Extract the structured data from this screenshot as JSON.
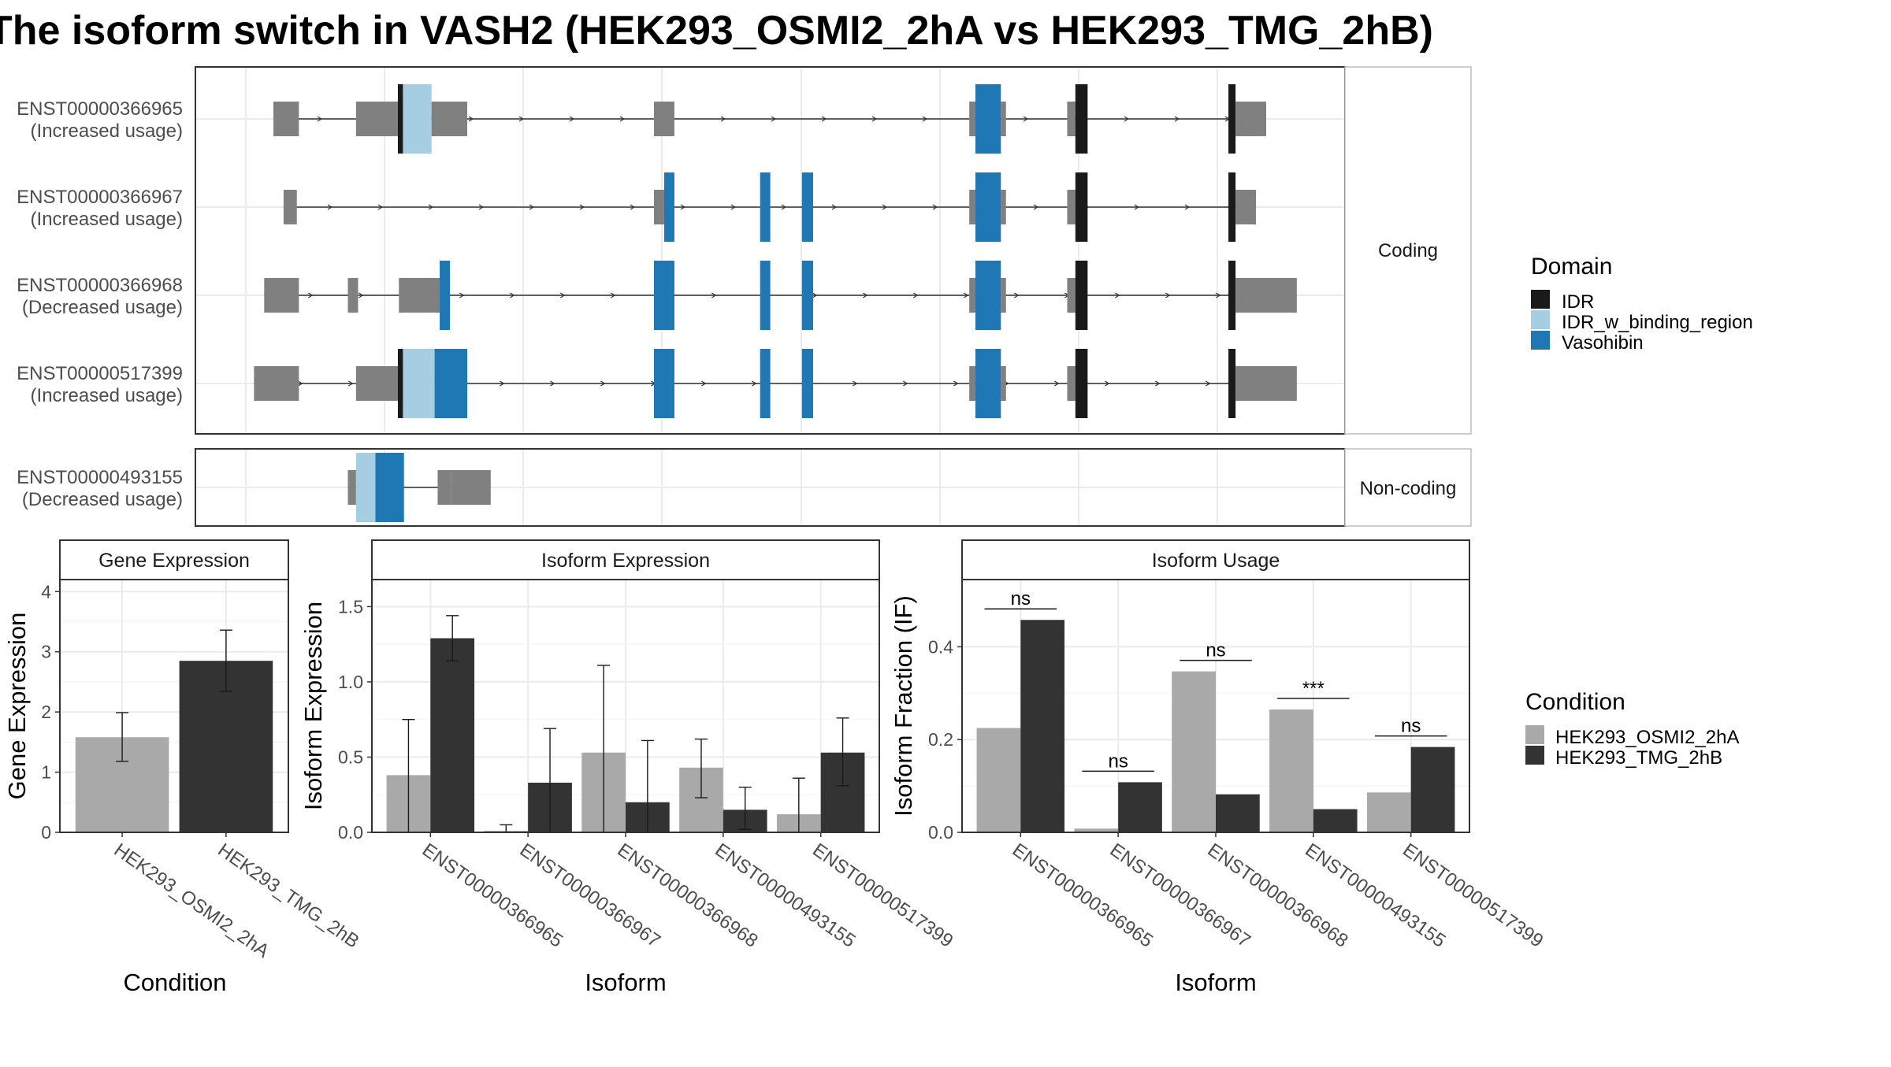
{
  "title": "The isoform switch in VASH2 (HEK293_OSMI2_2hA vs HEK293_TMG_2hB)",
  "colors": {
    "utr": "#808080",
    "IDR": "#1a1a1a",
    "IDR_w_binding_region": "#a6cee3",
    "Vasohibin": "#1f78b4",
    "cond1": "#a9a9a9",
    "cond2": "#333333",
    "grid": "#ebebeb",
    "panel_border": "#333333",
    "strip_fill": "#ffffff"
  },
  "structure": {
    "strips": {
      "coding": "Coding",
      "noncoding": "Non-coding"
    },
    "coding_isoforms": [
      {
        "id": "ENST00000366965",
        "label": "(Increased usage)",
        "segments": [
          {
            "from": 0.027,
            "to": 0.052,
            "kind": "utr"
          },
          {
            "from": 0.108,
            "to": 0.149,
            "kind": "utr"
          },
          {
            "from": 0.149,
            "to": 0.154,
            "kind": "IDR"
          },
          {
            "from": 0.154,
            "to": 0.182,
            "kind": "IDR_w_binding_region"
          },
          {
            "from": 0.182,
            "to": 0.217,
            "kind": "utr"
          },
          {
            "from": 0.4,
            "to": 0.42,
            "kind": "utr"
          },
          {
            "from": 0.709,
            "to": 0.715,
            "kind": "utr"
          },
          {
            "from": 0.715,
            "to": 0.74,
            "kind": "Vasohibin"
          },
          {
            "from": 0.74,
            "to": 0.745,
            "kind": "utr"
          },
          {
            "from": 0.805,
            "to": 0.813,
            "kind": "utr"
          },
          {
            "from": 0.813,
            "to": 0.825,
            "kind": "IDR"
          },
          {
            "from": 0.963,
            "to": 0.97,
            "kind": "IDR"
          },
          {
            "from": 0.97,
            "to": 1.0,
            "kind": "utr"
          }
        ]
      },
      {
        "id": "ENST00000366967",
        "label": "(Increased usage)",
        "segments": [
          {
            "from": 0.037,
            "to": 0.05,
            "kind": "utr"
          },
          {
            "from": 0.4,
            "to": 0.41,
            "kind": "utr"
          },
          {
            "from": 0.41,
            "to": 0.42,
            "kind": "Vasohibin"
          },
          {
            "from": 0.504,
            "to": 0.514,
            "kind": "Vasohibin"
          },
          {
            "from": 0.545,
            "to": 0.556,
            "kind": "Vasohibin"
          },
          {
            "from": 0.709,
            "to": 0.715,
            "kind": "utr"
          },
          {
            "from": 0.715,
            "to": 0.74,
            "kind": "Vasohibin"
          },
          {
            "from": 0.74,
            "to": 0.745,
            "kind": "utr"
          },
          {
            "from": 0.805,
            "to": 0.813,
            "kind": "utr"
          },
          {
            "from": 0.813,
            "to": 0.825,
            "kind": "IDR"
          },
          {
            "from": 0.963,
            "to": 0.97,
            "kind": "IDR"
          },
          {
            "from": 0.97,
            "to": 0.99,
            "kind": "utr"
          }
        ]
      },
      {
        "id": "ENST00000366968",
        "label": "(Decreased usage)",
        "segments": [
          {
            "from": 0.018,
            "to": 0.052,
            "kind": "utr"
          },
          {
            "from": 0.1,
            "to": 0.11,
            "kind": "utr"
          },
          {
            "from": 0.15,
            "to": 0.19,
            "kind": "utr"
          },
          {
            "from": 0.19,
            "to": 0.2,
            "kind": "Vasohibin"
          },
          {
            "from": 0.4,
            "to": 0.42,
            "kind": "Vasohibin"
          },
          {
            "from": 0.504,
            "to": 0.514,
            "kind": "Vasohibin"
          },
          {
            "from": 0.545,
            "to": 0.556,
            "kind": "Vasohibin"
          },
          {
            "from": 0.709,
            "to": 0.715,
            "kind": "utr"
          },
          {
            "from": 0.715,
            "to": 0.74,
            "kind": "Vasohibin"
          },
          {
            "from": 0.74,
            "to": 0.745,
            "kind": "utr"
          },
          {
            "from": 0.805,
            "to": 0.813,
            "kind": "utr"
          },
          {
            "from": 0.813,
            "to": 0.825,
            "kind": "IDR"
          },
          {
            "from": 0.963,
            "to": 0.97,
            "kind": "IDR"
          },
          {
            "from": 0.97,
            "to": 1.03,
            "kind": "utr"
          }
        ]
      },
      {
        "id": "ENST00000517399",
        "label": "(Increased usage)",
        "segments": [
          {
            "from": 0.008,
            "to": 0.052,
            "kind": "utr"
          },
          {
            "from": 0.108,
            "to": 0.149,
            "kind": "utr"
          },
          {
            "from": 0.149,
            "to": 0.154,
            "kind": "IDR"
          },
          {
            "from": 0.154,
            "to": 0.185,
            "kind": "IDR_w_binding_region"
          },
          {
            "from": 0.185,
            "to": 0.217,
            "kind": "Vasohibin"
          },
          {
            "from": 0.4,
            "to": 0.42,
            "kind": "Vasohibin"
          },
          {
            "from": 0.504,
            "to": 0.514,
            "kind": "Vasohibin"
          },
          {
            "from": 0.545,
            "to": 0.556,
            "kind": "Vasohibin"
          },
          {
            "from": 0.709,
            "to": 0.715,
            "kind": "utr"
          },
          {
            "from": 0.715,
            "to": 0.74,
            "kind": "Vasohibin"
          },
          {
            "from": 0.74,
            "to": 0.745,
            "kind": "utr"
          },
          {
            "from": 0.805,
            "to": 0.813,
            "kind": "utr"
          },
          {
            "from": 0.813,
            "to": 0.825,
            "kind": "IDR"
          },
          {
            "from": 0.963,
            "to": 0.97,
            "kind": "IDR"
          },
          {
            "from": 0.97,
            "to": 1.03,
            "kind": "utr"
          }
        ]
      }
    ],
    "noncoding_isoforms": [
      {
        "id": "ENST00000493155",
        "label": "(Decreased usage)",
        "segments": [
          {
            "from": 0.1,
            "to": 0.108,
            "kind": "utr"
          },
          {
            "from": 0.108,
            "to": 0.127,
            "kind": "IDR_w_binding_region"
          },
          {
            "from": 0.127,
            "to": 0.155,
            "kind": "Vasohibin"
          },
          {
            "from": 0.188,
            "to": 0.201,
            "kind": "utr"
          },
          {
            "from": 0.201,
            "to": 0.24,
            "kind": "utr"
          }
        ]
      }
    ]
  },
  "domain_legend": {
    "title": "Domain",
    "items": [
      {
        "key": "IDR",
        "label": "IDR"
      },
      {
        "key": "IDR_w_binding_region",
        "label": "IDR_w_binding_region"
      },
      {
        "key": "Vasohibin",
        "label": "Vasohibin"
      }
    ]
  },
  "condition_legend": {
    "title": "Condition",
    "items": [
      {
        "key": "cond1",
        "label": "HEK293_OSMI2_2hA"
      },
      {
        "key": "cond2",
        "label": "HEK293_TMG_2hB"
      }
    ]
  },
  "chart_data": [
    {
      "type": "bar",
      "title": "Gene Expression",
      "xlabel": "Condition",
      "ylabel": "Gene Expression",
      "categories": [
        "HEK293_OSMI2_2hA",
        "HEK293_TMG_2hB"
      ],
      "values": [
        1.58,
        2.85
      ],
      "errors": [
        [
          1.18,
          1.99
        ],
        [
          2.34,
          3.36
        ]
      ],
      "ylim": [
        0,
        4.2
      ],
      "yticks": [
        0,
        1,
        2,
        3,
        4
      ],
      "ytick_labels": [
        "0",
        "1",
        "2",
        "3",
        "4"
      ],
      "grid": true
    },
    {
      "type": "bar",
      "title": "Isoform Expression",
      "xlabel": "Isoform",
      "ylabel": "Isoform Expression",
      "categories": [
        "ENST00000366965",
        "ENST00000366967",
        "ENST00000366968",
        "ENST00000493155",
        "ENST00000517399"
      ],
      "series": [
        {
          "name": "HEK293_OSMI2_2hA",
          "values": [
            0.38,
            0.01,
            0.53,
            0.43,
            0.12
          ],
          "errors": [
            [
              0.0,
              0.75
            ],
            [
              0.0,
              0.05
            ],
            [
              0.0,
              1.11
            ],
            [
              0.23,
              0.62
            ],
            [
              0.0,
              0.36
            ]
          ]
        },
        {
          "name": "HEK293_TMG_2hB",
          "values": [
            1.29,
            0.33,
            0.2,
            0.15,
            0.53
          ],
          "errors": [
            [
              1.14,
              1.44
            ],
            [
              0.0,
              0.69
            ],
            [
              0.0,
              0.61
            ],
            [
              0.02,
              0.3
            ],
            [
              0.31,
              0.76
            ]
          ]
        }
      ],
      "ylim": [
        0,
        1.68
      ],
      "yticks": [
        0,
        0.5,
        1.0,
        1.5
      ],
      "ytick_labels": [
        "0.0",
        "0.5",
        "1.0",
        "1.5"
      ],
      "grid": true,
      "legend": "right"
    },
    {
      "type": "bar",
      "title": "Isoform Usage",
      "xlabel": "Isoform",
      "ylabel": "Isoform Fraction (IF)",
      "categories": [
        "ENST00000366965",
        "ENST00000366967",
        "ENST00000366968",
        "ENST00000493155",
        "ENST00000517399"
      ],
      "series": [
        {
          "name": "HEK293_OSMI2_2hA",
          "values": [
            0.225,
            0.008,
            0.347,
            0.265,
            0.086
          ]
        },
        {
          "name": "HEK293_TMG_2hB",
          "values": [
            0.458,
            0.108,
            0.082,
            0.05,
            0.184
          ]
        }
      ],
      "significance": [
        "ns",
        "ns",
        "ns",
        "***",
        "ns"
      ],
      "ylim": [
        0,
        0.545
      ],
      "yticks": [
        0,
        0.2,
        0.4
      ],
      "ytick_labels": [
        "0.0",
        "0.2",
        "0.4"
      ],
      "grid": true,
      "legend": "right"
    }
  ]
}
